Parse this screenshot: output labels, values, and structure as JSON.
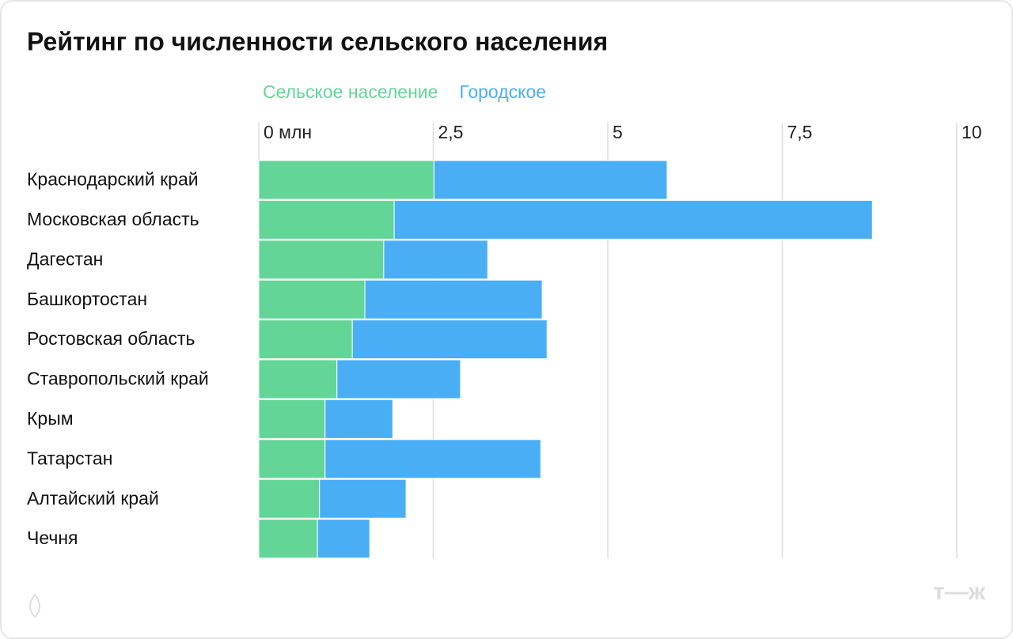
{
  "chart_data": {
    "type": "stacked-bar-horizontal",
    "title": "Рейтинг по численности сельского населения",
    "categories": [
      "Краснодарский край",
      "Московская область",
      "Дагестан",
      "Башкортостан",
      "Ростовская область",
      "Ставропольский край",
      "Крым",
      "Татарстан",
      "Алтайский край",
      "Чечня"
    ],
    "series": [
      {
        "name": "Сельское население",
        "color": "#62d597",
        "values": [
          2.51,
          1.94,
          1.79,
          1.52,
          1.34,
          1.12,
          0.95,
          0.95,
          0.87,
          0.84
        ]
      },
      {
        "name": "Городское",
        "color": "#4aaef5",
        "values": [
          3.34,
          6.85,
          1.49,
          2.54,
          2.79,
          1.77,
          0.97,
          3.09,
          1.24,
          0.75
        ]
      }
    ],
    "xlim": [
      0,
      10
    ],
    "xticks": [
      {
        "value": 0,
        "label": "0 млн"
      },
      {
        "value": 2.5,
        "label": "2,5"
      },
      5,
      {
        "value": 7.5,
        "label": "7,5"
      },
      10
    ],
    "grid": true,
    "logo": "т—ж"
  }
}
